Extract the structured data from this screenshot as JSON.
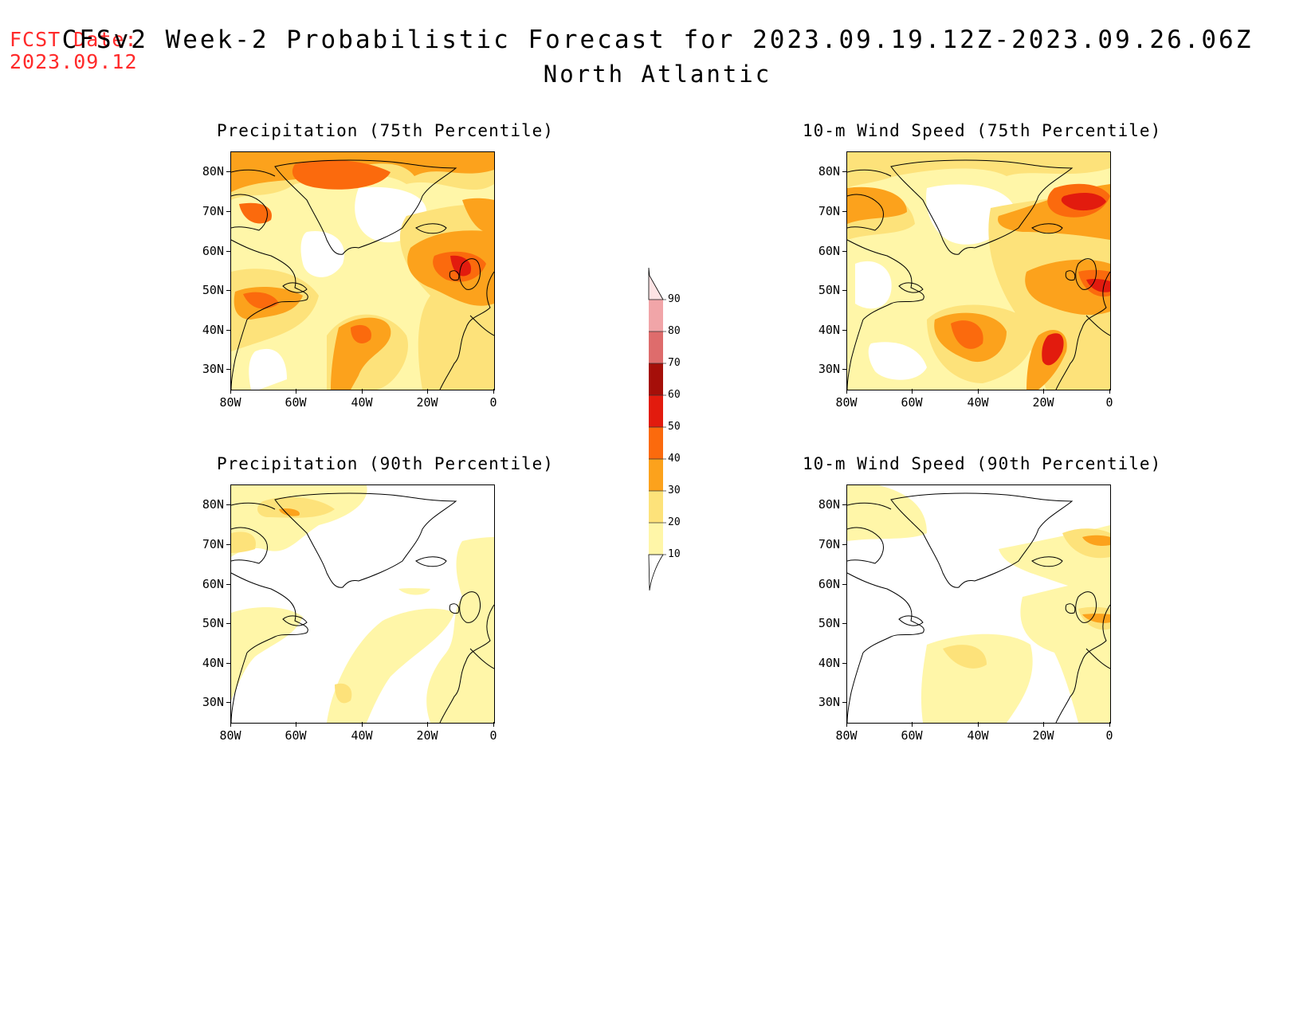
{
  "header": {
    "fcst_label": "FCST Date:",
    "fcst_date": "2023.09.12",
    "title": "CFSv2 Week-2 Probabilistic Forecast for 2023.09.19.12Z-2023.09.26.06Z",
    "subtitle": "North Atlantic"
  },
  "axes": {
    "lat_labels": [
      "80N",
      "70N",
      "60N",
      "50N",
      "40N",
      "30N"
    ],
    "lon_labels": [
      "80W",
      "60W",
      "40W",
      "20W",
      "0"
    ]
  },
  "panels": [
    {
      "id": "precip75",
      "title": "Precipitation (75th Percentile)"
    },
    {
      "id": "wind75",
      "title": "10-m Wind Speed (75th Percentile)"
    },
    {
      "id": "precip90",
      "title": "Precipitation (90th Percentile)"
    },
    {
      "id": "wind90",
      "title": "10-m Wind Speed (90th Percentile)"
    }
  ],
  "colorbar": {
    "labels": [
      "90",
      "80",
      "70",
      "60",
      "50",
      "40",
      "30",
      "20",
      "10"
    ],
    "colors": {
      "10-20": "#fff6a8",
      "20-30": "#fde27a",
      "30-40": "#fca21c",
      "40-50": "#fb6a0d",
      "50-60": "#e21b0e",
      "60-70": "#a50f09",
      "70-80": "#de6c6c",
      "80-90": "#f1a5a8",
      "90-100": "#fde3e4"
    }
  }
}
